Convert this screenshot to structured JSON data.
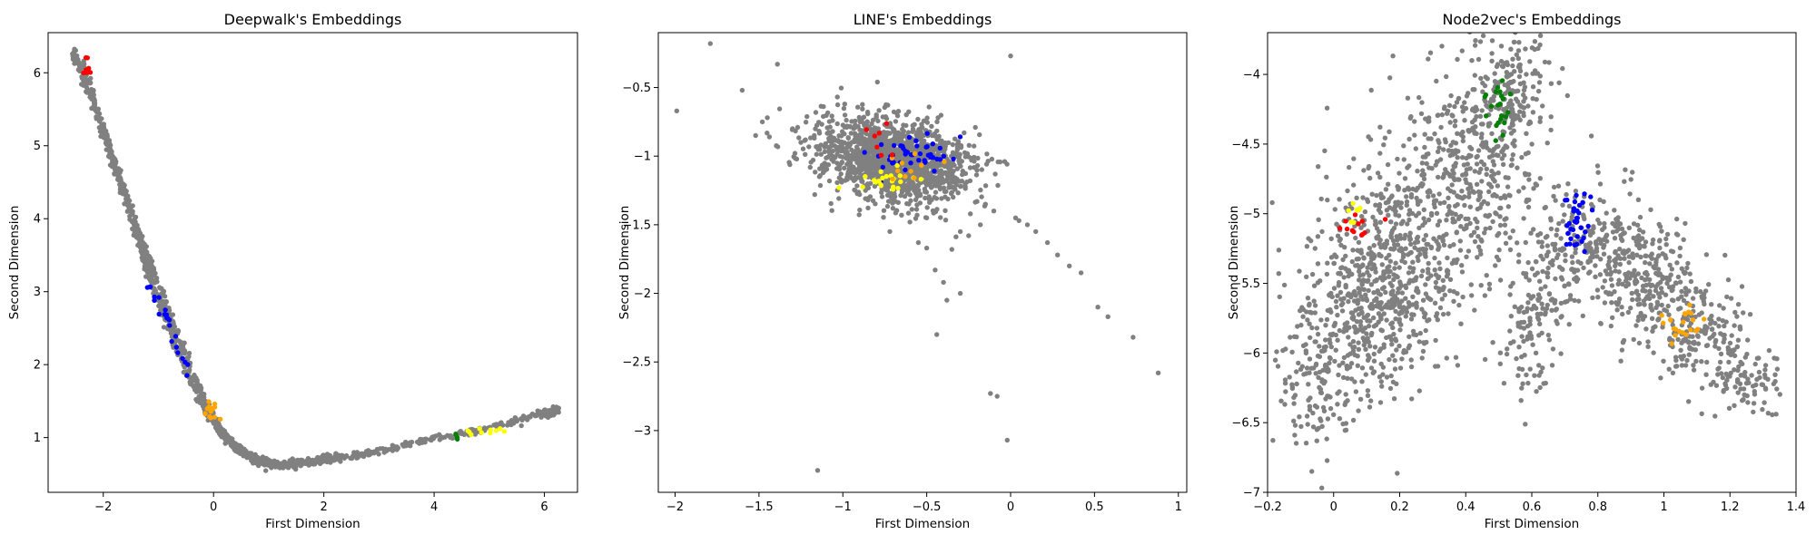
{
  "chart_data": [
    {
      "type": "scatter",
      "title": "Deepwalk's Embeddings",
      "xlabel": "First Dimension",
      "ylabel": "Second Dimension",
      "xlim": [
        -3.0,
        6.6
      ],
      "ylim": [
        0.25,
        6.55
      ],
      "xticks": [
        -2,
        0,
        2,
        4,
        6
      ],
      "yticks": [
        1,
        2,
        3,
        4,
        5,
        6
      ],
      "series_colors": {
        "background": "#808080",
        "red": "#ff0000",
        "blue": "#0000ff",
        "orange": "#ffa500",
        "yellow": "#ffff00",
        "green": "#008000"
      },
      "gray_curves": [
        {
          "x": [
            -2.55,
            -2.3,
            -2.0,
            -1.7,
            -1.4,
            -1.1,
            -0.8,
            -0.5,
            -0.2,
            0.1,
            0.4,
            0.8,
            1.2,
            1.6,
            2.0,
            3.0,
            4.0,
            5.0,
            6.0,
            6.25
          ],
          "y": [
            6.3,
            5.8,
            5.2,
            4.5,
            3.8,
            3.1,
            2.5,
            1.95,
            1.45,
            1.1,
            0.85,
            0.68,
            0.62,
            0.66,
            0.7,
            0.82,
            0.98,
            1.13,
            1.33,
            1.38
          ],
          "n": 900,
          "jitter": [
            0.05,
            0.05
          ]
        },
        {
          "x": [
            -2.4,
            -2.15,
            -1.85,
            -1.55,
            -1.25,
            -0.95,
            -0.65,
            -0.35,
            -0.05,
            0.25,
            0.6,
            1.0,
            1.4,
            1.8,
            2.2,
            3.0
          ],
          "y": [
            6.2,
            5.6,
            4.95,
            4.25,
            3.6,
            3.0,
            2.4,
            1.85,
            1.35,
            1.0,
            0.78,
            0.65,
            0.62,
            0.67,
            0.71,
            0.8
          ],
          "n": 500,
          "jitter": [
            0.04,
            0.04
          ]
        }
      ],
      "highlight_clusters": [
        {
          "color": "red",
          "cx": -2.3,
          "cy": 6.1,
          "sx": 0.05,
          "sy": 0.1,
          "n": 8
        },
        {
          "color": "blue",
          "cx": -0.85,
          "cy": 2.45,
          "sx": 0.22,
          "sy": 0.38,
          "n": 22,
          "along": [
            [
              -1.15,
              3.1
            ],
            [
              -0.35,
              1.7
            ]
          ]
        },
        {
          "color": "orange",
          "cx": -0.05,
          "cy": 1.38,
          "sx": 0.06,
          "sy": 0.07,
          "n": 14
        },
        {
          "color": "yellow",
          "cx": 4.95,
          "cy": 1.08,
          "sx": 0.2,
          "sy": 0.03,
          "n": 10
        },
        {
          "color": "green",
          "cx": 4.45,
          "cy": 1.0,
          "sx": 0.05,
          "sy": 0.02,
          "n": 3
        }
      ]
    },
    {
      "type": "scatter",
      "title": "LINE's Embeddings",
      "xlabel": "First Dimension",
      "ylabel": "Second Dimension",
      "xlim": [
        -2.1,
        1.05
      ],
      "ylim": [
        -3.45,
        -0.1
      ],
      "xticks": [
        -2.0,
        -1.5,
        -1.0,
        -0.5,
        0.0,
        0.5,
        1.0
      ],
      "yticks": [
        -0.5,
        -1.0,
        -1.5,
        -2.0,
        -2.5,
        -3.0
      ],
      "gray_cloud": {
        "cx": -0.7,
        "cy": -1.02,
        "sx": 0.22,
        "sy": 0.14,
        "rot": -0.3,
        "n": 1600
      },
      "gray_outliers": {
        "x": [
          -1.99,
          -1.79,
          -1.6,
          -1.39,
          -1.48,
          -1.52,
          -1.45,
          -1.3,
          -1.25,
          -1.17,
          -1.15,
          -0.02,
          0.03,
          -0.08,
          -0.12,
          -0.18,
          -0.24,
          -0.3,
          -0.35,
          0.05,
          0.1,
          0.15,
          0.22,
          0.28,
          0.35,
          0.42,
          0.52,
          0.58,
          0.73,
          0.88,
          -0.55,
          -0.5,
          -0.38,
          -0.3,
          -0.25,
          -0.44,
          -0.65,
          -0.72,
          -0.85,
          -0.9,
          -0.4,
          -0.45,
          -0.15,
          -0.1,
          -0.5,
          -0.6,
          -0.2,
          0.0
        ],
        "y": [
          -0.67,
          -0.18,
          -0.52,
          -0.33,
          -0.75,
          -0.85,
          -0.72,
          -0.8,
          -0.9,
          -0.85,
          -3.29,
          -3.07,
          -1.45,
          -2.75,
          -2.73,
          -1.5,
          -1.42,
          -1.55,
          -1.68,
          -1.47,
          -1.5,
          -1.55,
          -1.63,
          -1.72,
          -1.8,
          -1.85,
          -2.1,
          -2.17,
          -2.32,
          -2.58,
          -1.63,
          -1.67,
          -2.05,
          -2.0,
          -1.58,
          -2.3,
          -1.43,
          -1.55,
          -1.32,
          -1.28,
          -1.92,
          -1.83,
          -1.35,
          -1.4,
          -1.45,
          -1.48,
          -1.33,
          -0.27
        ]
      },
      "highlight_clusters": [
        {
          "color": "blue",
          "cx": -0.55,
          "cy": -1.02,
          "sx": 0.13,
          "sy": 0.09,
          "n": 45
        },
        {
          "color": "yellow",
          "cx": -0.7,
          "cy": -1.17,
          "sx": 0.1,
          "sy": 0.04,
          "n": 22
        },
        {
          "color": "orange",
          "cx": -0.6,
          "cy": -1.1,
          "sx": 0.12,
          "sy": 0.06,
          "n": 10
        },
        {
          "color": "red",
          "cx": -0.8,
          "cy": -0.92,
          "sx": 0.07,
          "sy": 0.06,
          "n": 7
        }
      ]
    },
    {
      "type": "scatter",
      "title": "Node2vec's Embeddings",
      "xlabel": "First Dimension",
      "ylabel": "Second Dimension",
      "xlim": [
        -0.2,
        1.4
      ],
      "ylim": [
        -7.0,
        -3.7
      ],
      "xticks": [
        -0.2,
        0.0,
        0.2,
        0.4,
        0.6,
        0.8,
        1.0,
        1.2,
        1.4
      ],
      "yticks": [
        -4.0,
        -4.5,
        -5.0,
        -5.5,
        -6.0,
        -6.5,
        -7.0
      ],
      "gray_blobs": [
        {
          "cx": 0.1,
          "cy": -5.6,
          "sx": 0.1,
          "sy": 0.35,
          "n": 500
        },
        {
          "cx": -0.05,
          "cy": -6.2,
          "sx": 0.06,
          "sy": 0.25,
          "n": 120
        },
        {
          "cx": 0.28,
          "cy": -5.1,
          "sx": 0.12,
          "sy": 0.4,
          "n": 420
        },
        {
          "cx": 0.45,
          "cy": -4.5,
          "sx": 0.1,
          "sy": 0.35,
          "n": 300
        },
        {
          "cx": 0.55,
          "cy": -4.1,
          "sx": 0.05,
          "sy": 0.2,
          "n": 120
        },
        {
          "cx": 0.6,
          "cy": -5.8,
          "sx": 0.05,
          "sy": 0.25,
          "n": 110
        },
        {
          "cx": 0.78,
          "cy": -5.25,
          "sx": 0.1,
          "sy": 0.2,
          "n": 260
        },
        {
          "cx": 0.95,
          "cy": -5.5,
          "sx": 0.08,
          "sy": 0.2,
          "n": 200
        },
        {
          "cx": 1.1,
          "cy": -5.85,
          "sx": 0.08,
          "sy": 0.2,
          "n": 190
        },
        {
          "cx": 1.25,
          "cy": -6.2,
          "sx": 0.05,
          "sy": 0.12,
          "n": 80
        }
      ],
      "highlight_clusters": [
        {
          "color": "green",
          "cx": 0.5,
          "cy": -4.3,
          "sx": 0.02,
          "sy": 0.15,
          "n": 22
        },
        {
          "color": "blue",
          "cx": 0.73,
          "cy": -5.05,
          "sx": 0.03,
          "sy": 0.1,
          "n": 35
        },
        {
          "color": "orange",
          "cx": 1.05,
          "cy": -5.82,
          "sx": 0.03,
          "sy": 0.07,
          "n": 22
        },
        {
          "color": "red",
          "cx": 0.08,
          "cy": -5.08,
          "sx": 0.03,
          "sy": 0.05,
          "n": 12
        },
        {
          "color": "yellow",
          "cx": 0.06,
          "cy": -5.0,
          "sx": 0.015,
          "sy": 0.06,
          "n": 8
        }
      ]
    }
  ]
}
